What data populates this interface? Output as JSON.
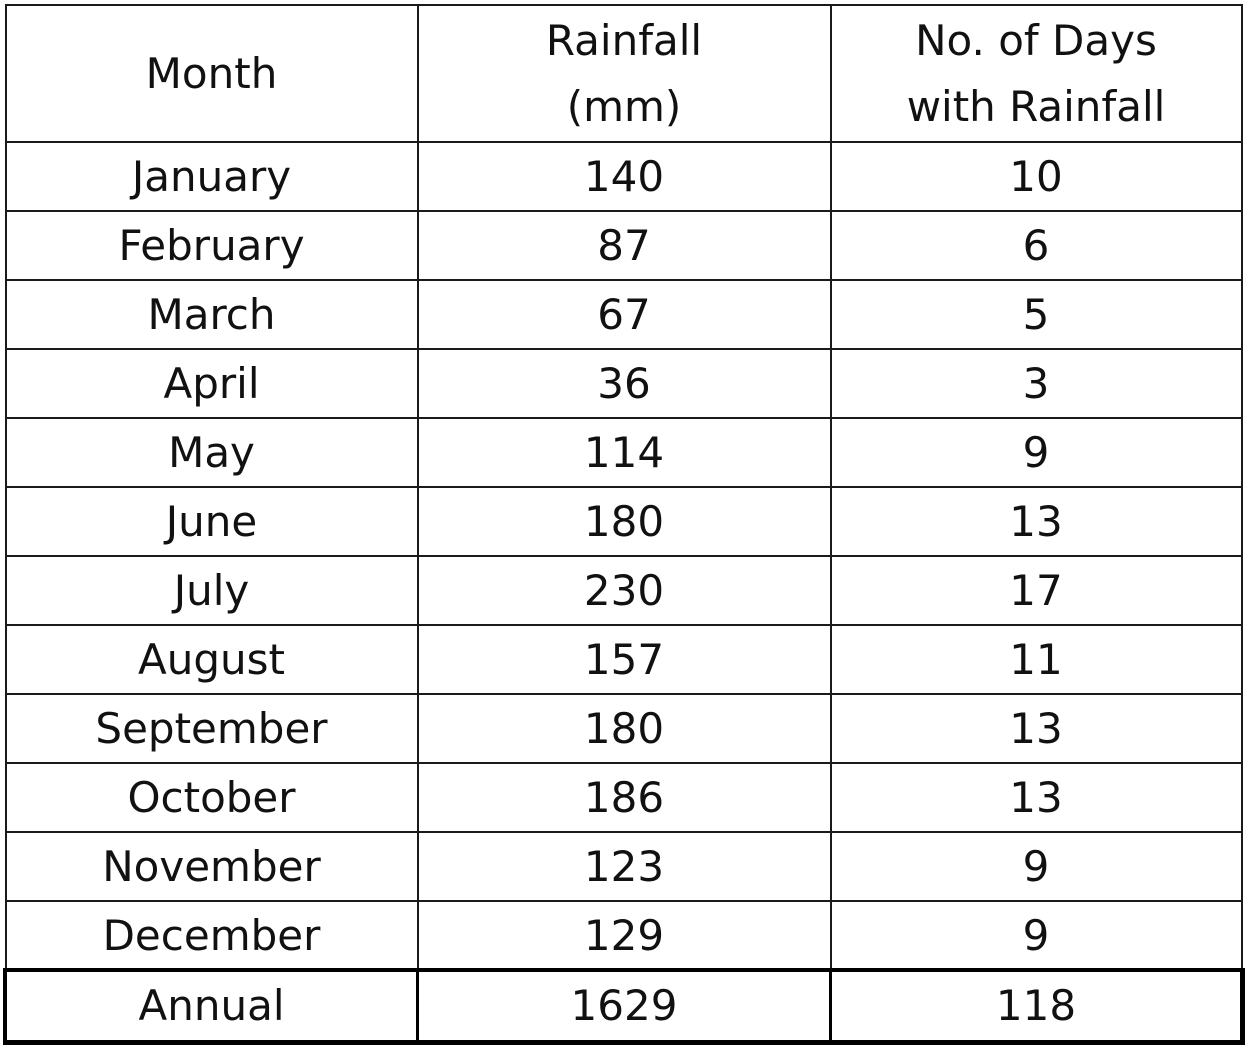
{
  "table": {
    "headers": {
      "month": "Month",
      "rainfall_line1": "Rainfall",
      "rainfall_line2": "(mm)",
      "days_line1": "No. of Days",
      "days_line2": "with Rainfall"
    },
    "rows": [
      {
        "month": "January",
        "rainfall": "140",
        "days": "10"
      },
      {
        "month": "February",
        "rainfall": "87",
        "days": "6"
      },
      {
        "month": "March",
        "rainfall": "67",
        "days": "5"
      },
      {
        "month": "April",
        "rainfall": "36",
        "days": "3"
      },
      {
        "month": "May",
        "rainfall": "114",
        "days": "9"
      },
      {
        "month": "June",
        "rainfall": "180",
        "days": "13"
      },
      {
        "month": "July",
        "rainfall": "230",
        "days": "17"
      },
      {
        "month": "August",
        "rainfall": "157",
        "days": "11"
      },
      {
        "month": "September",
        "rainfall": "180",
        "days": "13"
      },
      {
        "month": "October",
        "rainfall": "186",
        "days": "13"
      },
      {
        "month": "November",
        "rainfall": "123",
        "days": "9"
      },
      {
        "month": "December",
        "rainfall": "129",
        "days": "9"
      }
    ],
    "total": {
      "month": "Annual",
      "rainfall": "1629",
      "days": "118"
    }
  }
}
